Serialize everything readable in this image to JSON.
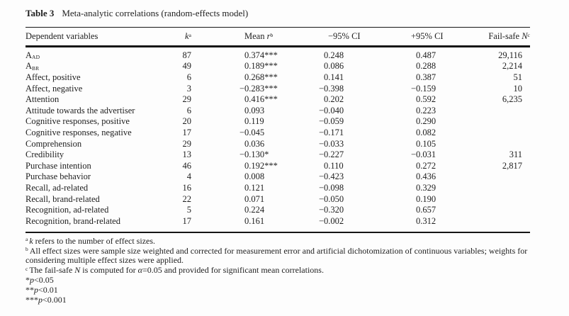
{
  "title": {
    "label": "Table 3",
    "text": "Meta-analytic correlations (random-effects model)"
  },
  "table": {
    "headers": [
      {
        "name": "dependent",
        "segments": [
          {
            "t": "Dependent variables"
          }
        ]
      },
      {
        "name": "k",
        "segments": [
          {
            "t": "k",
            "i": true
          },
          {
            "t": "a",
            "sup": true
          }
        ]
      },
      {
        "name": "mean",
        "segments": [
          {
            "t": "Mean "
          },
          {
            "t": "r",
            "i": true
          },
          {
            "t": "b",
            "sup": true
          }
        ]
      },
      {
        "name": "ci_neg",
        "segments": [
          {
            "t": "−95% CI"
          }
        ]
      },
      {
        "name": "ci_pos",
        "segments": [
          {
            "t": "+95% CI"
          }
        ]
      },
      {
        "name": "failsafe",
        "segments": [
          {
            "t": "Fail-safe "
          },
          {
            "t": "N",
            "i": true
          },
          {
            "t": "c",
            "sup": true
          }
        ]
      }
    ],
    "rows": [
      {
        "label": "A",
        "label_sub": "AD",
        "k": "87",
        "mean": "0.374***",
        "ci_neg": "0.248",
        "ci_pos": "0.487",
        "failsafe": "29,116"
      },
      {
        "label": "A",
        "label_sub": "BR",
        "k": "49",
        "mean": "0.189***",
        "ci_neg": "0.086",
        "ci_pos": "0.288",
        "failsafe": "2,214"
      },
      {
        "label": "Affect, positive",
        "k": "6",
        "mean": "0.268***",
        "ci_neg": "0.141",
        "ci_pos": "0.387",
        "failsafe": "51"
      },
      {
        "label": "Affect, negative",
        "k": "3",
        "mean": "−0.283***",
        "ci_neg": "−0.398",
        "ci_pos": "−0.159",
        "failsafe": "10"
      },
      {
        "label": "Attention",
        "k": "29",
        "mean": "0.416***",
        "ci_neg": "0.202",
        "ci_pos": "0.592",
        "failsafe": "6,235"
      },
      {
        "label": "Attitude towards the advertiser",
        "k": "6",
        "mean": "0.093",
        "ci_neg": "−0.040",
        "ci_pos": "0.223",
        "failsafe": ""
      },
      {
        "label": "Cognitive responses, positive",
        "k": "20",
        "mean": "0.119",
        "ci_neg": "−0.059",
        "ci_pos": "0.290",
        "failsafe": ""
      },
      {
        "label": "Cognitive responses, negative",
        "k": "17",
        "mean": "−0.045",
        "ci_neg": "−0.171",
        "ci_pos": "0.082",
        "failsafe": ""
      },
      {
        "label": "Comprehension",
        "k": "29",
        "mean": "0.036",
        "ci_neg": "−0.033",
        "ci_pos": "0.105",
        "failsafe": ""
      },
      {
        "label": "Credibility",
        "k": "13",
        "mean": "−0.130*",
        "ci_neg": "−0.227",
        "ci_pos": "−0.031",
        "failsafe": "311"
      },
      {
        "label": "Purchase intention",
        "k": "46",
        "mean": "0.192***",
        "ci_neg": "0.110",
        "ci_pos": "0.272",
        "failsafe": "2,817"
      },
      {
        "label": "Purchase behavior",
        "k": "4",
        "mean": "0.008",
        "ci_neg": "−0.423",
        "ci_pos": "0.436",
        "failsafe": ""
      },
      {
        "label": "Recall, ad-related",
        "k": "16",
        "mean": "0.121",
        "ci_neg": "−0.098",
        "ci_pos": "0.329",
        "failsafe": ""
      },
      {
        "label": "Recall, brand-related",
        "k": "22",
        "mean": "0.071",
        "ci_neg": "−0.050",
        "ci_pos": "0.190",
        "failsafe": ""
      },
      {
        "label": "Recognition, ad-related",
        "k": "5",
        "mean": "0.224",
        "ci_neg": "−0.320",
        "ci_pos": "0.657",
        "failsafe": ""
      },
      {
        "label": "Recognition, brand-related",
        "k": "17",
        "mean": "0.161",
        "ci_neg": "−0.002",
        "ci_pos": "0.312",
        "failsafe": ""
      }
    ]
  },
  "footnotes": [
    {
      "sup": "a",
      "segments": [
        {
          "t": "k",
          "i": true
        },
        {
          "t": " refers to the number of effect sizes."
        }
      ]
    },
    {
      "sup": "b",
      "segments": [
        {
          "t": "All effect sizes were sample size weighted and corrected for measurement error and artificial dichotomization of continuous variables; weights for considering multiple effect sizes were applied."
        }
      ]
    },
    {
      "sup": "c",
      "segments": [
        {
          "t": "The fail-safe "
        },
        {
          "t": "N",
          "i": true
        },
        {
          "t": " is computed for "
        },
        {
          "t": "α",
          "i": true
        },
        {
          "t": "=0.05 and provided for significant mean correlations."
        }
      ]
    }
  ],
  "significance": [
    {
      "stars": "*",
      "segments": [
        {
          "t": "p",
          "i": true
        },
        {
          "t": "<0.05"
        }
      ]
    },
    {
      "stars": "**",
      "segments": [
        {
          "t": "p",
          "i": true
        },
        {
          "t": "<0.01"
        }
      ]
    },
    {
      "stars": "***",
      "segments": [
        {
          "t": "p",
          "i": true
        },
        {
          "t": "<0.001"
        }
      ]
    }
  ]
}
